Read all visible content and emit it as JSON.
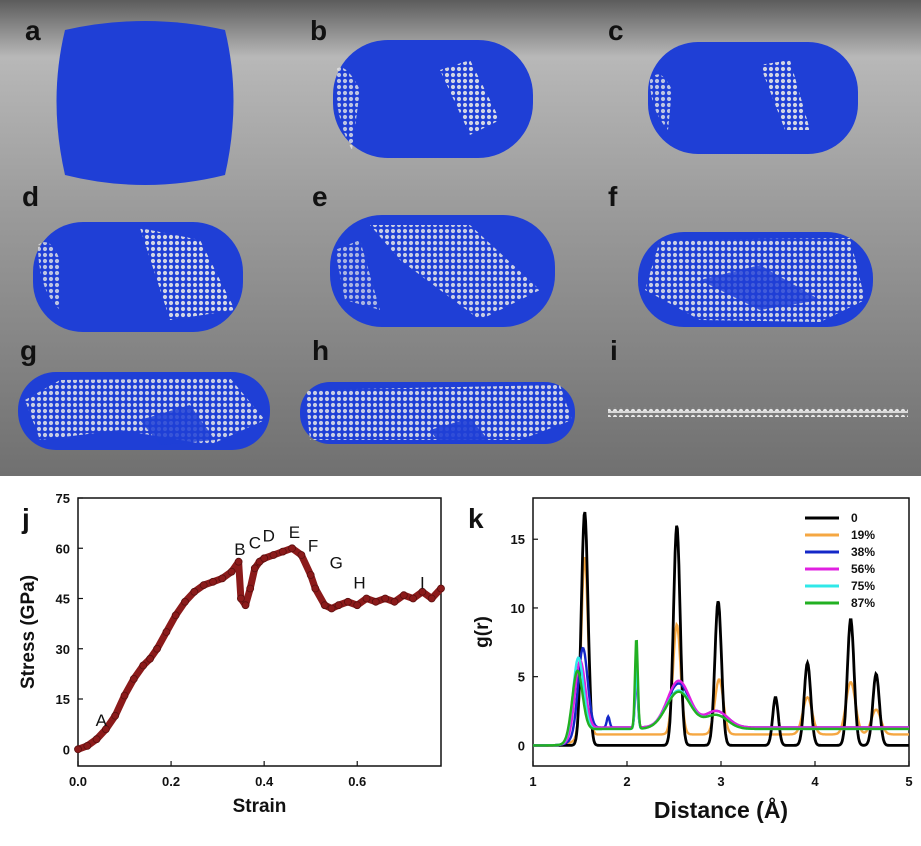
{
  "colors": {
    "atom_blue": "#1f3fd6",
    "atom_white": "#e8e8e8",
    "stress_curve": "#8b1a1a"
  },
  "snapshots": [
    {
      "label": "a"
    },
    {
      "label": "b"
    },
    {
      "label": "c"
    },
    {
      "label": "d"
    },
    {
      "label": "e"
    },
    {
      "label": "f"
    },
    {
      "label": "g"
    },
    {
      "label": "h"
    },
    {
      "label": "i"
    }
  ],
  "chart_data": [
    {
      "panel": "j",
      "type": "line",
      "xlabel": "Strain",
      "ylabel": "Stress (GPa)",
      "xlim": [
        0.0,
        0.78
      ],
      "ylim": [
        -5,
        75
      ],
      "xticks": [
        "0.0",
        "0.2",
        "0.4",
        "0.6"
      ],
      "yticks": [
        "0",
        "15",
        "30",
        "45",
        "60",
        "75"
      ],
      "series": [
        {
          "name": "stress-strain",
          "color": "#8b1a1a",
          "x": [
            0.0,
            0.02,
            0.04,
            0.06,
            0.08,
            0.1,
            0.12,
            0.14,
            0.155,
            0.17,
            0.19,
            0.21,
            0.23,
            0.25,
            0.27,
            0.29,
            0.31,
            0.33,
            0.345,
            0.35,
            0.36,
            0.37,
            0.38,
            0.39,
            0.4,
            0.42,
            0.44,
            0.46,
            0.48,
            0.5,
            0.51,
            0.53,
            0.545,
            0.56,
            0.58,
            0.6,
            0.62,
            0.64,
            0.66,
            0.68,
            0.7,
            0.72,
            0.74,
            0.76,
            0.78
          ],
          "y": [
            0,
            1,
            3,
            6,
            10,
            16,
            21,
            25,
            27,
            30,
            35,
            40,
            44,
            47,
            49,
            50,
            51,
            53,
            56,
            45,
            43,
            48,
            54,
            56,
            57,
            58,
            59,
            60,
            58,
            52,
            48,
            43,
            42,
            43,
            44,
            43,
            45,
            44,
            45,
            44,
            46,
            45,
            47,
            45,
            48
          ]
        }
      ],
      "annotations": [
        {
          "text": "A",
          "x": 0.05,
          "y": 7
        },
        {
          "text": "B",
          "x": 0.348,
          "y": 58
        },
        {
          "text": "C",
          "x": 0.38,
          "y": 60
        },
        {
          "text": "D",
          "x": 0.41,
          "y": 62
        },
        {
          "text": "E",
          "x": 0.465,
          "y": 63
        },
        {
          "text": "F",
          "x": 0.505,
          "y": 59
        },
        {
          "text": "G",
          "x": 0.555,
          "y": 54
        },
        {
          "text": "H",
          "x": 0.605,
          "y": 48
        },
        {
          "text": "I",
          "x": 0.74,
          "y": 48
        }
      ]
    },
    {
      "panel": "k",
      "type": "line",
      "xlabel": "Distance (Å)",
      "ylabel": "g(r)",
      "xlim": [
        1,
        5
      ],
      "ylim": [
        -1.5,
        18
      ],
      "xticks": [
        "1",
        "2",
        "3",
        "4",
        "5"
      ],
      "yticks": [
        "0",
        "5",
        "10",
        "15"
      ],
      "legend_position": "top-right",
      "series": [
        {
          "name": "0",
          "color": "#000000",
          "peaks": [
            [
              1.55,
              17,
              0.035
            ],
            [
              2.53,
              16,
              0.035
            ],
            [
              2.97,
              10.5,
              0.035
            ],
            [
              3.58,
              3.5,
              0.03
            ],
            [
              3.92,
              6,
              0.035
            ],
            [
              4.38,
              9.2,
              0.035
            ],
            [
              4.65,
              5.2,
              0.035
            ]
          ],
          "floor": 0.0
        },
        {
          "name": "19%",
          "color": "#f5a742",
          "peaks": [
            [
              1.55,
              13,
              0.035
            ],
            [
              2.53,
              8,
              0.04
            ],
            [
              2.98,
              4,
              0.045
            ],
            [
              3.92,
              2.7,
              0.05
            ],
            [
              4.38,
              3.8,
              0.05
            ],
            [
              4.65,
              1.8,
              0.05
            ]
          ],
          "floor": 0.8
        },
        {
          "name": "38%",
          "color": "#1428c8",
          "peaks": [
            [
              1.53,
              6,
              0.05
            ],
            [
              1.8,
              0.8,
              0.015
            ],
            [
              2.1,
              3.6,
              0.015
            ],
            [
              2.55,
              3.2,
              0.12
            ],
            [
              2.95,
              1.2,
              0.12
            ]
          ],
          "floor": 1.3
        },
        {
          "name": "56%",
          "color": "#e020e0",
          "peaks": [
            [
              1.5,
              5.2,
              0.055
            ],
            [
              2.1,
              4.2,
              0.015
            ],
            [
              2.55,
              3.4,
              0.12
            ],
            [
              2.95,
              1.2,
              0.12
            ]
          ],
          "floor": 1.3
        },
        {
          "name": "75%",
          "color": "#30e8e8",
          "peaks": [
            [
              1.48,
              5.6,
              0.055
            ],
            [
              2.1,
              4.6,
              0.015
            ],
            [
              2.55,
              2.8,
              0.13
            ],
            [
              2.95,
              1.0,
              0.12
            ]
          ],
          "floor": 1.2
        },
        {
          "name": "87%",
          "color": "#22b022",
          "peaks": [
            [
              1.47,
              4.7,
              0.055
            ],
            [
              2.1,
              6.6,
              0.015
            ],
            [
              2.55,
              2.7,
              0.13
            ],
            [
              2.95,
              1.0,
              0.12
            ]
          ],
          "floor": 1.2
        }
      ]
    }
  ],
  "panel_labels": {
    "j": "j",
    "k": "k"
  }
}
